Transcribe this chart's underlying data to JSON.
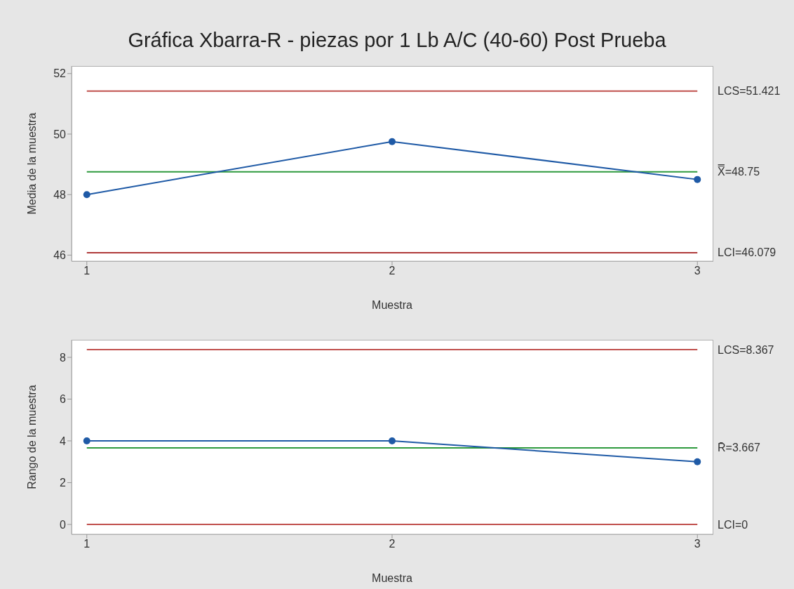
{
  "chart_data": [
    {
      "type": "line",
      "title": "Gráfica Xbarra-R - piezas por 1 Lb A/C (40-60) Post Prueba",
      "xlabel": "Muestra",
      "ylabel": "Media de la muestra",
      "x": [
        1,
        2,
        3
      ],
      "series": [
        {
          "color": "#1f5aa6",
          "values": [
            48.0,
            49.75,
            48.5
          ]
        }
      ],
      "xlim": [
        0.95,
        3.05
      ],
      "xticks": [
        1,
        2,
        3
      ],
      "ylim": [
        45.8,
        52.25
      ],
      "yticks": [
        46,
        48,
        50,
        52
      ],
      "marker": "circle",
      "line_style": "solid",
      "ref_lines": [
        {
          "axis": "y",
          "value": 51.421,
          "label": "LCS=51.421",
          "color": "#c0504d"
        },
        {
          "axis": "y",
          "value": 48.75,
          "label": "X̿=48.75",
          "color": "#2e9a3e"
        },
        {
          "axis": "y",
          "value": 46.079,
          "label": "LCI=46.079",
          "color": "#b03a3a"
        }
      ]
    },
    {
      "type": "line",
      "xlabel": "Muestra",
      "ylabel": "Rango de la muestra",
      "x": [
        1,
        2,
        3
      ],
      "series": [
        {
          "color": "#1f5aa6",
          "values": [
            4,
            4,
            3
          ]
        }
      ],
      "xlim": [
        0.95,
        3.05
      ],
      "xticks": [
        1,
        2,
        3
      ],
      "ylim": [
        -0.47,
        8.84
      ],
      "yticks": [
        0,
        2,
        4,
        6,
        8
      ],
      "marker": "circle",
      "line_style": "solid",
      "ref_lines": [
        {
          "axis": "y",
          "value": 8.367,
          "label": "LCS=8.367",
          "color": "#c0504d"
        },
        {
          "axis": "y",
          "value": 3.667,
          "label": "R̄=3.667",
          "color": "#2e9a3e"
        },
        {
          "axis": "y",
          "value": 0,
          "label": "LCI=0",
          "color": "#c0504d"
        }
      ]
    }
  ]
}
